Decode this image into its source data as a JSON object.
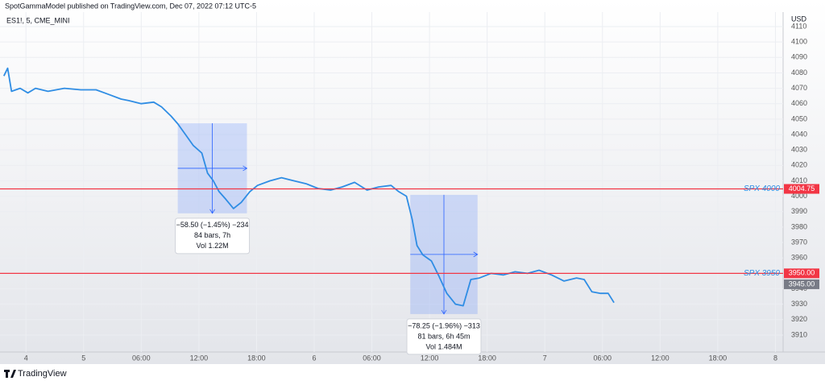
{
  "chart_data": {
    "type": "line",
    "title": "SpotGammaModel published on TradingView.com, Dec 07, 2022 07:12 UTC-5",
    "subtitle": "ES1!, 5, CME_MINI",
    "y_axis_label": "USD",
    "brand": "TradingView",
    "x": [
      -8.3,
      -7.9,
      -7.5,
      -6.6,
      -5.8,
      -5.0,
      -3.7,
      -2.0,
      -0.3,
      1.3,
      2.6,
      3.9,
      4.7,
      6.0,
      7.3,
      8.1,
      9.1,
      9.8,
      10.6,
      11.4,
      12.3,
      12.9,
      13.5,
      14.1,
      14.8,
      15.6,
      16.4,
      17.3,
      18.1,
      19.4,
      20.6,
      21.9,
      23.2,
      24.4,
      25.7,
      26.9,
      28.2,
      29.5,
      30.7,
      32.0,
      32.8,
      33.6,
      34.2,
      34.7,
      35.3,
      36.2,
      37.0,
      37.8,
      38.7,
      39.5,
      40.3,
      41.2,
      42.4,
      43.7,
      44.9,
      46.2,
      47.4,
      48.7,
      50.0,
      51.3,
      52.1,
      52.9,
      53.8,
      54.6,
      55.2
    ],
    "series": [
      {
        "name": "ES1!",
        "color": "#2f8de4",
        "values": [
          4078,
          4083,
          4068,
          4070,
          4067,
          4070,
          4068,
          4070,
          4069,
          4069,
          4066,
          4063,
          4062,
          4060,
          4061,
          4058,
          4052,
          4047,
          4040,
          4033,
          4028,
          4015,
          4010,
          4003,
          3998,
          3992,
          3996,
          4003,
          4007,
          4010,
          4012,
          4010,
          4008,
          4005,
          4004,
          4006,
          4009,
          4004,
          4006,
          4007,
          4003,
          4000,
          3985,
          3968,
          3962,
          3958,
          3948,
          3937,
          3930,
          3929,
          3946,
          3947,
          3950,
          3949,
          3951,
          3950,
          3952,
          3949,
          3945,
          3947,
          3946,
          3938,
          3937,
          3937,
          3931
        ]
      }
    ],
    "xlim": [
      -8.7,
      72.8
    ],
    "ylim": [
      3899,
      4119.4
    ],
    "xticks": [
      {
        "value": -6,
        "label": "4"
      },
      {
        "value": 0,
        "label": "5"
      },
      {
        "value": 6,
        "label": "06:00"
      },
      {
        "value": 12,
        "label": "12:00"
      },
      {
        "value": 18,
        "label": "18:00"
      },
      {
        "value": 24,
        "label": "6"
      },
      {
        "value": 30,
        "label": "06:00"
      },
      {
        "value": 36,
        "label": "12:00"
      },
      {
        "value": 42,
        "label": "18:00"
      },
      {
        "value": 48,
        "label": "7"
      },
      {
        "value": 54,
        "label": "06:00"
      },
      {
        "value": 60,
        "label": "12:00"
      },
      {
        "value": 66,
        "label": "18:00"
      },
      {
        "value": 72,
        "label": "8"
      }
    ],
    "yticks": [
      3910,
      3920,
      3930,
      3940,
      3950,
      3960,
      3970,
      3980,
      3990,
      4000,
      4010,
      4020,
      4030,
      4040,
      4050,
      4060,
      4070,
      4080,
      4090,
      4100,
      4110
    ],
    "grid": true,
    "hlines": [
      {
        "name": "SPX 4000",
        "value": 4004.75,
        "label": "4004.75",
        "color": "#f23645"
      },
      {
        "name": "SPX 3950",
        "value": 3950,
        "label": "3950.00",
        "color": "#f23645"
      }
    ],
    "last_price": {
      "value": 3945,
      "label": "3945.00"
    },
    "annotations": [
      {
        "xrange": [
          9.8,
          17.0
        ],
        "yrange": [
          3988.9,
          4047.3
        ],
        "lines": [
          "−58.50 (−1.45%) −234",
          "84 bars, 7h",
          "Vol 1.22M"
        ]
      },
      {
        "xrange": [
          34.0,
          41.0
        ],
        "yrange": [
          3923.6,
          4000.9
        ],
        "lines": [
          "−78.25 (−1.96%) −313",
          "81 bars, 6h 45m",
          "Vol 1.484M"
        ]
      }
    ]
  }
}
